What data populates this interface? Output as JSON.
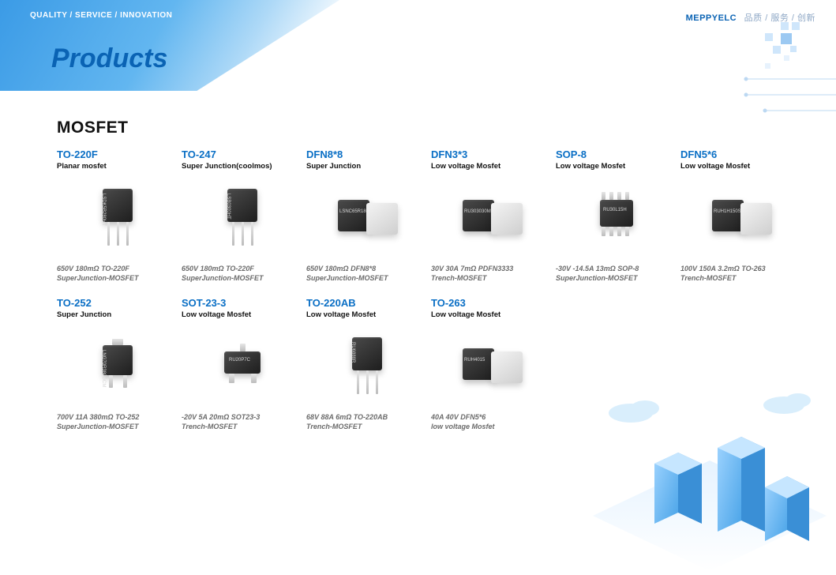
{
  "header": {
    "tagline": "QUALITY / SERVICE / INNOVATION",
    "page_title": "Products",
    "brand_en": "MEPPYELC",
    "brand_cn": "品质 / 服务 / 创新"
  },
  "section": {
    "title": "MOSFET"
  },
  "colors": {
    "brand_blue": "#0a63b4",
    "link_blue": "#0a6fc5",
    "banner_grad_start": "#3b9be6",
    "banner_grad_end": "#aed9f7",
    "deco_sq": "#cfe6fb",
    "city_fill": "#72c1ff",
    "city_fill_dark": "#3a8fd6"
  },
  "products_row1": [
    {
      "name": "TO-220F",
      "sub": "Planar mosfet",
      "spec": "650V 180mΩ TO-220F\nSuperJunction-MOSFET",
      "pkg": "to220f",
      "label": "LSDK5B280HT"
    },
    {
      "name": "TO-247",
      "sub": "Super Junction(coolmos)",
      "spec": "650V 180mΩ TO-220F\nSuperJunction-MOSFET",
      "pkg": "to247",
      "label": "LSB0300HT"
    },
    {
      "name": "DFN8*8",
      "sub": "Super Junction",
      "spec": "650V 180mΩ DFN8*8\nSuperJunction-MOSFET",
      "pkg": "dfn88",
      "label": "LSNC65R180HT"
    },
    {
      "name": "DFN3*3",
      "sub": "Low voltage Mosfet",
      "spec": "30V 30A 7mΩ PDFN3333\nTrench-MOSFET",
      "pkg": "dfn33",
      "label": "RU303030M2"
    },
    {
      "name": "SOP-8",
      "sub": "Low voltage Mosfet",
      "spec": "-30V -14.5A 13mΩ SOP-8\nSuperJunction-MOSFET",
      "pkg": "sop8",
      "label": "RU30L15H"
    },
    {
      "name": "DFN5*6",
      "sub": "Low voltage Mosfet",
      "spec": "100V 150A 3.2mΩ TO-263\nTrench-MOSFET",
      "pkg": "dfn56",
      "label": "RUH1H150S-R"
    }
  ],
  "products_row2": [
    {
      "name": "TO-252",
      "sub": "Super Junction",
      "spec": "700V 11A 380mΩ TO-252\nSuperJunction-MOSFET",
      "pkg": "to252",
      "label": "LNG70R380GCM"
    },
    {
      "name": "SOT-23-3",
      "sub": "Low voltage Mosfet",
      "spec": "-20V 5A 20mΩ SOT23-3\nTrench-MOSFET",
      "pkg": "sot23",
      "label": "RU20P7C"
    },
    {
      "name": "TO-220AB",
      "sub": "Low voltage Mosfet",
      "spec": "68V 88A 6mΩ TO-220AB\nTrench-MOSFET",
      "pkg": "to220ab",
      "label": "RU6888R"
    },
    {
      "name": "TO-263",
      "sub": "Low voltage Mosfet",
      "spec": "40A 40V DFN5*6\nlow voltage Mosfet",
      "pkg": "to263",
      "label": "RUH4015"
    }
  ]
}
